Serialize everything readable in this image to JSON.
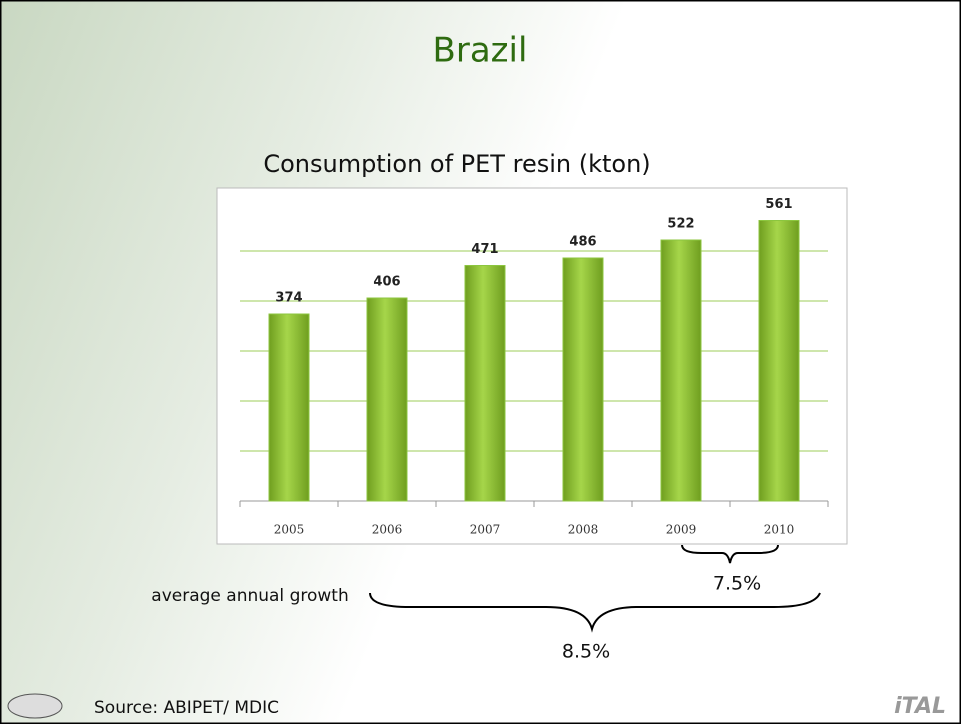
{
  "chart_data": {
    "type": "bar",
    "title": "Brazil",
    "subtitle": "Consumption of PET resin (kton)",
    "categories": [
      "2005",
      "2006",
      "2007",
      "2008",
      "2009",
      "2010"
    ],
    "values": [
      374,
      406,
      471,
      486,
      522,
      561
    ],
    "color": "#8cc63f",
    "ylim": [
      0,
      600
    ],
    "yticks": [
      0,
      100,
      200,
      300,
      400,
      500
    ],
    "grid": true,
    "annotations": {
      "growth_label": "average annual growth",
      "growth_short": "7.5%",
      "growth_long": "8.5%"
    },
    "source": "Source: ABIPET/ MDIC",
    "logo": "iTAL"
  }
}
